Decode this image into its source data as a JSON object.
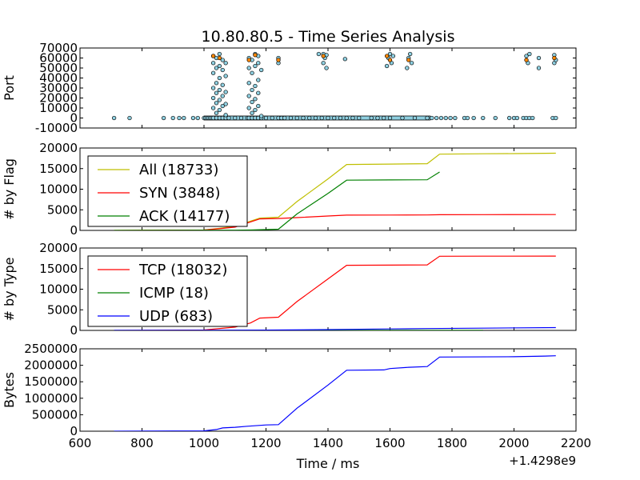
{
  "chart_data": {
    "title": "10.80.80.5 - Time Series Analysis",
    "xlabel": "Time / ms",
    "x_offset_label": "+1.4298e9",
    "xlim": [
      600,
      2200
    ],
    "xticks": [
      "600",
      "800",
      "1000",
      "1200",
      "1400",
      "1600",
      "1800",
      "2000",
      "2200"
    ],
    "panels": [
      {
        "type": "scatter",
        "ylabel": "Port",
        "ylim": [
          -10000,
          70000
        ],
        "yticks": [
          "-10000",
          "0",
          "10000",
          "20000",
          "30000",
          "40000",
          "50000",
          "60000",
          "70000"
        ],
        "series": [
          {
            "color": "#8ecfe0",
            "points": [
              [
                710,
                0
              ],
              [
                760,
                0
              ],
              [
                870,
                0
              ],
              [
                900,
                0
              ],
              [
                920,
                0
              ],
              [
                935,
                0
              ],
              [
                965,
                0
              ],
              [
                980,
                0
              ],
              [
                1000,
                0
              ],
              [
                1005,
                0
              ],
              [
                1010,
                0
              ],
              [
                1015,
                0
              ],
              [
                1020,
                0
              ],
              [
                1025,
                0
              ],
              [
                1030,
                0
              ],
              [
                1030,
                10000
              ],
              [
                1030,
                20000
              ],
              [
                1030,
                30000
              ],
              [
                1030,
                45000
              ],
              [
                1030,
                55000
              ],
              [
                1030,
                62000
              ],
              [
                1040,
                0
              ],
              [
                1040,
                5000
              ],
              [
                1040,
                15000
              ],
              [
                1040,
                25000
              ],
              [
                1040,
                35000
              ],
              [
                1040,
                50000
              ],
              [
                1040,
                60000
              ],
              [
                1050,
                0
              ],
              [
                1050,
                8000
              ],
              [
                1050,
                18000
              ],
              [
                1050,
                28000
              ],
              [
                1050,
                40000
              ],
              [
                1050,
                52000
              ],
              [
                1050,
                64000
              ],
              [
                1060,
                0
              ],
              [
                1060,
                12000
              ],
              [
                1060,
                22000
              ],
              [
                1060,
                33000
              ],
              [
                1060,
                48000
              ],
              [
                1060,
                58000
              ],
              [
                1070,
                0
              ],
              [
                1070,
                3000
              ],
              [
                1070,
                14000
              ],
              [
                1070,
                26000
              ],
              [
                1070,
                42000
              ],
              [
                1070,
                55000
              ],
              [
                1080,
                0
              ],
              [
                1100,
                0
              ],
              [
                1120,
                0
              ],
              [
                1140,
                0
              ],
              [
                1145,
                0
              ],
              [
                1145,
                10000
              ],
              [
                1145,
                22000
              ],
              [
                1145,
                35000
              ],
              [
                1145,
                50000
              ],
              [
                1145,
                60000
              ],
              [
                1155,
                0
              ],
              [
                1155,
                5000
              ],
              [
                1155,
                16000
              ],
              [
                1155,
                28000
              ],
              [
                1155,
                45000
              ],
              [
                1155,
                58000
              ],
              [
                1165,
                0
              ],
              [
                1165,
                8000
              ],
              [
                1165,
                19000
              ],
              [
                1165,
                32000
              ],
              [
                1165,
                52000
              ],
              [
                1165,
                64000
              ],
              [
                1175,
                0
              ],
              [
                1175,
                12000
              ],
              [
                1175,
                25000
              ],
              [
                1175,
                38000
              ],
              [
                1175,
                55000
              ],
              [
                1175,
                62000
              ],
              [
                1185,
                0
              ],
              [
                1185,
                2000
              ],
              [
                1185,
                48000
              ],
              [
                1200,
                0
              ],
              [
                1220,
                0
              ],
              [
                1240,
                0
              ],
              [
                1240,
                60000
              ],
              [
                1240,
                55000
              ],
              [
                1250,
                0
              ],
              [
                1260,
                0
              ],
              [
                1280,
                0
              ],
              [
                1300,
                0
              ],
              [
                1320,
                0
              ],
              [
                1340,
                0
              ],
              [
                1360,
                0
              ],
              [
                1370,
                64000
              ],
              [
                1380,
                0
              ],
              [
                1385,
                55000
              ],
              [
                1385,
                64000
              ],
              [
                1390,
                60000
              ],
              [
                1395,
                50000
              ],
              [
                1395,
                63000
              ],
              [
                1400,
                0
              ],
              [
                1420,
                0
              ],
              [
                1440,
                0
              ],
              [
                1455,
                59000
              ],
              [
                1460,
                0
              ],
              [
                1480,
                0
              ],
              [
                1500,
                0
              ],
              [
                1540,
                0
              ],
              [
                1560,
                0
              ],
              [
                1580,
                0
              ],
              [
                1590,
                52000
              ],
              [
                1595,
                60000
              ],
              [
                1600,
                64000
              ],
              [
                1600,
                0
              ],
              [
                1605,
                55000
              ],
              [
                1610,
                62000
              ],
              [
                1640,
                0
              ],
              [
                1655,
                50000
              ],
              [
                1660,
                60000
              ],
              [
                1665,
                64000
              ],
              [
                1670,
                55000
              ],
              [
                1680,
                0
              ],
              [
                1720,
                0
              ],
              [
                1735,
                0
              ],
              [
                1750,
                0
              ],
              [
                1765,
                0
              ],
              [
                1780,
                0
              ],
              [
                1795,
                0
              ],
              [
                1810,
                0
              ],
              [
                1840,
                0
              ],
              [
                1850,
                0
              ],
              [
                1870,
                0
              ],
              [
                1900,
                0
              ],
              [
                1940,
                0
              ],
              [
                1985,
                0
              ],
              [
                2000,
                0
              ],
              [
                2010,
                0
              ],
              [
                2030,
                0
              ],
              [
                2040,
                0
              ],
              [
                2050,
                0
              ],
              [
                2060,
                0
              ],
              [
                2040,
                62000
              ],
              [
                2045,
                55000
              ],
              [
                2050,
                64000
              ],
              [
                2080,
                50000
              ],
              [
                2080,
                60000
              ],
              [
                2125,
                0
              ],
              [
                2130,
                55000
              ],
              [
                2130,
                63000
              ],
              [
                2135,
                0
              ],
              [
                2135,
                58000
              ]
            ],
            "band": [
              1000,
              1730,
              0
            ]
          },
          {
            "color": "#ff8800",
            "points": [
              [
                1030,
                62000
              ],
              [
                1050,
                60000
              ],
              [
                1145,
                58000
              ],
              [
                1165,
                63000
              ],
              [
                1240,
                58000
              ],
              [
                1385,
                62000
              ],
              [
                1590,
                62000
              ],
              [
                1600,
                58000
              ],
              [
                1660,
                58000
              ],
              [
                2040,
                58000
              ],
              [
                2130,
                60000
              ]
            ]
          }
        ]
      },
      {
        "type": "line",
        "ylabel": "# by Flag",
        "ylim": [
          0,
          20000
        ],
        "yticks": [
          "0",
          "5000",
          "10000",
          "15000",
          "20000"
        ],
        "legend": "upper-left",
        "series": [
          {
            "name": "All (18733)",
            "color": "#bfbf00",
            "x": [
              710,
              1000,
              1050,
              1100,
              1140,
              1180,
              1240,
              1300,
              1400,
              1460,
              1600,
              1720,
              1760,
              1900,
              2000,
              2135
            ],
            "y": [
              0,
              100,
              500,
              1000,
              2000,
              3000,
              3200,
              7000,
              12500,
              16000,
              16100,
              16200,
              18500,
              18600,
              18650,
              18733
            ]
          },
          {
            "name": "SYN (3848)",
            "color": "#ff0000",
            "x": [
              710,
              1000,
              1050,
              1100,
              1140,
              1180,
              1240,
              1300,
              1400,
              1460,
              1600,
              1720,
              1760,
              1900,
              2135
            ],
            "y": [
              0,
              100,
              400,
              800,
              1800,
              2800,
              2900,
              3100,
              3500,
              3700,
              3720,
              3740,
              3800,
              3830,
              3848
            ]
          },
          {
            "name": "ACK (14177)",
            "color": "#008000",
            "x": [
              710,
              1100,
              1150,
              1240,
              1300,
              1400,
              1460,
              1600,
              1720,
              1760
            ],
            "y": [
              0,
              50,
              100,
              300,
              4000,
              9000,
              12200,
              12250,
              12300,
              14177
            ]
          }
        ]
      },
      {
        "type": "line",
        "ylabel": "# by Type",
        "ylim": [
          0,
          20000
        ],
        "yticks": [
          "0",
          "5000",
          "10000",
          "15000",
          "20000"
        ],
        "legend": "upper-left",
        "series": [
          {
            "name": "TCP (18032)",
            "color": "#ff0000",
            "x": [
              710,
              1000,
              1100,
              1150,
              1180,
              1240,
              1300,
              1400,
              1460,
              1600,
              1720,
              1760,
              1900,
              2135
            ],
            "y": [
              0,
              100,
              800,
              1800,
              3000,
              3200,
              7000,
              12500,
              15800,
              15850,
              15900,
              18000,
              18010,
              18032
            ]
          },
          {
            "name": "ICMP (18)",
            "color": "#008000",
            "x": [
              710,
              1000,
              1500,
              1900
            ],
            "y": [
              0,
              5,
              12,
              18
            ]
          },
          {
            "name": "UDP (683)",
            "color": "#0000ff",
            "x": [
              710,
              1000,
              1200,
              1400,
              1600,
              1720,
              1900,
              2135
            ],
            "y": [
              0,
              20,
              80,
              200,
              350,
              450,
              550,
              683
            ]
          }
        ]
      },
      {
        "type": "line",
        "ylabel": "Bytes",
        "ylim": [
          0,
          2500000
        ],
        "yticks": [
          "0",
          "500000",
          "1000000",
          "1500000",
          "2000000",
          "2500000"
        ],
        "series": [
          {
            "color": "#0000ff",
            "x": [
              710,
              1000,
              1040,
              1060,
              1100,
              1140,
              1200,
              1240,
              1300,
              1400,
              1460,
              1580,
              1600,
              1660,
              1720,
              1760,
              2000,
              2100,
              2135
            ],
            "y": [
              0,
              10000,
              50000,
              100000,
              120000,
              150000,
              190000,
              200000,
              700000,
              1400000,
              1850000,
              1860000,
              1900000,
              1940000,
              1960000,
              2250000,
              2260000,
              2280000,
              2290000
            ]
          }
        ]
      }
    ]
  }
}
